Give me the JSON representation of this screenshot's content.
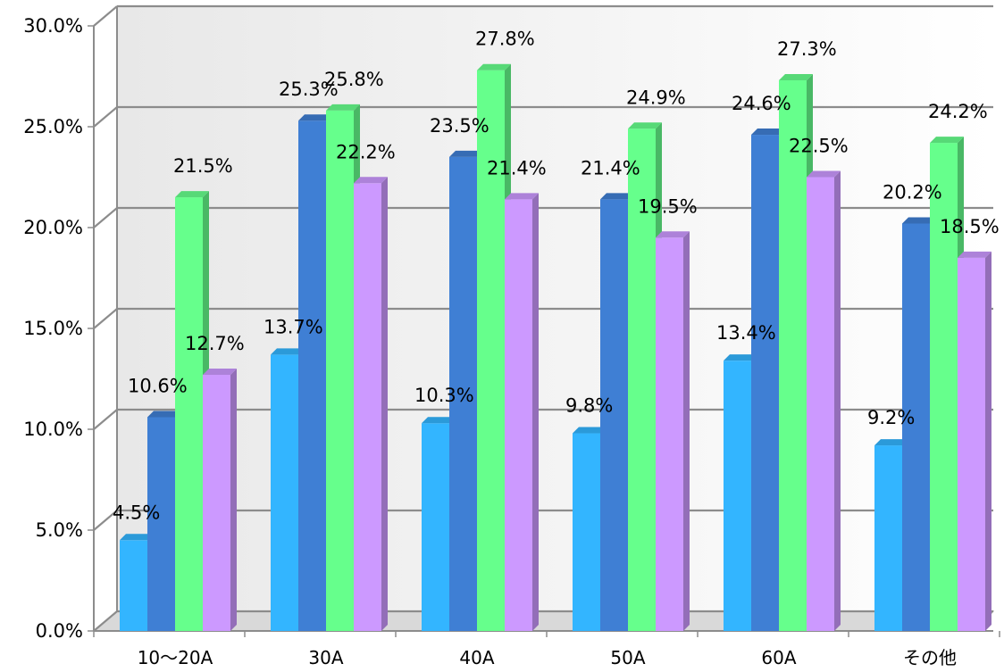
{
  "chart_data": {
    "type": "bar",
    "categories": [
      "10～20A",
      "30A",
      "40A",
      "50A",
      "60A",
      "その他"
    ],
    "series": [
      {
        "values": [
          4.5,
          13.7,
          10.3,
          9.8,
          13.4,
          9.2
        ],
        "value_labels": [
          "4.5%",
          "13.7%",
          "10.3%",
          "9.8%",
          "13.4%",
          "9.2%"
        ]
      },
      {
        "values": [
          10.6,
          25.3,
          23.5,
          21.4,
          24.6,
          20.2
        ],
        "value_labels": [
          "10.6%",
          "25.3%",
          "23.5%",
          "21.4%",
          "24.6%",
          "20.2%"
        ]
      },
      {
        "values": [
          21.5,
          25.8,
          27.8,
          24.9,
          27.3,
          24.2
        ],
        "value_labels": [
          "21.5%",
          "25.8%",
          "27.8%",
          "24.9%",
          "27.3%",
          "24.2%"
        ]
      },
      {
        "values": [
          12.7,
          22.2,
          21.4,
          19.5,
          22.5,
          18.5
        ],
        "value_labels": [
          "12.7%",
          "22.2%",
          "21.4%",
          "19.5%",
          "22.5%",
          "18.5%"
        ]
      }
    ],
    "ylim": [
      0,
      30
    ],
    "yticks": [
      "0.0%",
      "5.0%",
      "10.0%",
      "15.0%",
      "20.0%",
      "25.0%",
      "30.0%"
    ],
    "grid": true,
    "legend": "none",
    "colors": [
      "#33b5ff",
      "#3f7fd4",
      "#66ff8c",
      "#cc99ff"
    ]
  }
}
